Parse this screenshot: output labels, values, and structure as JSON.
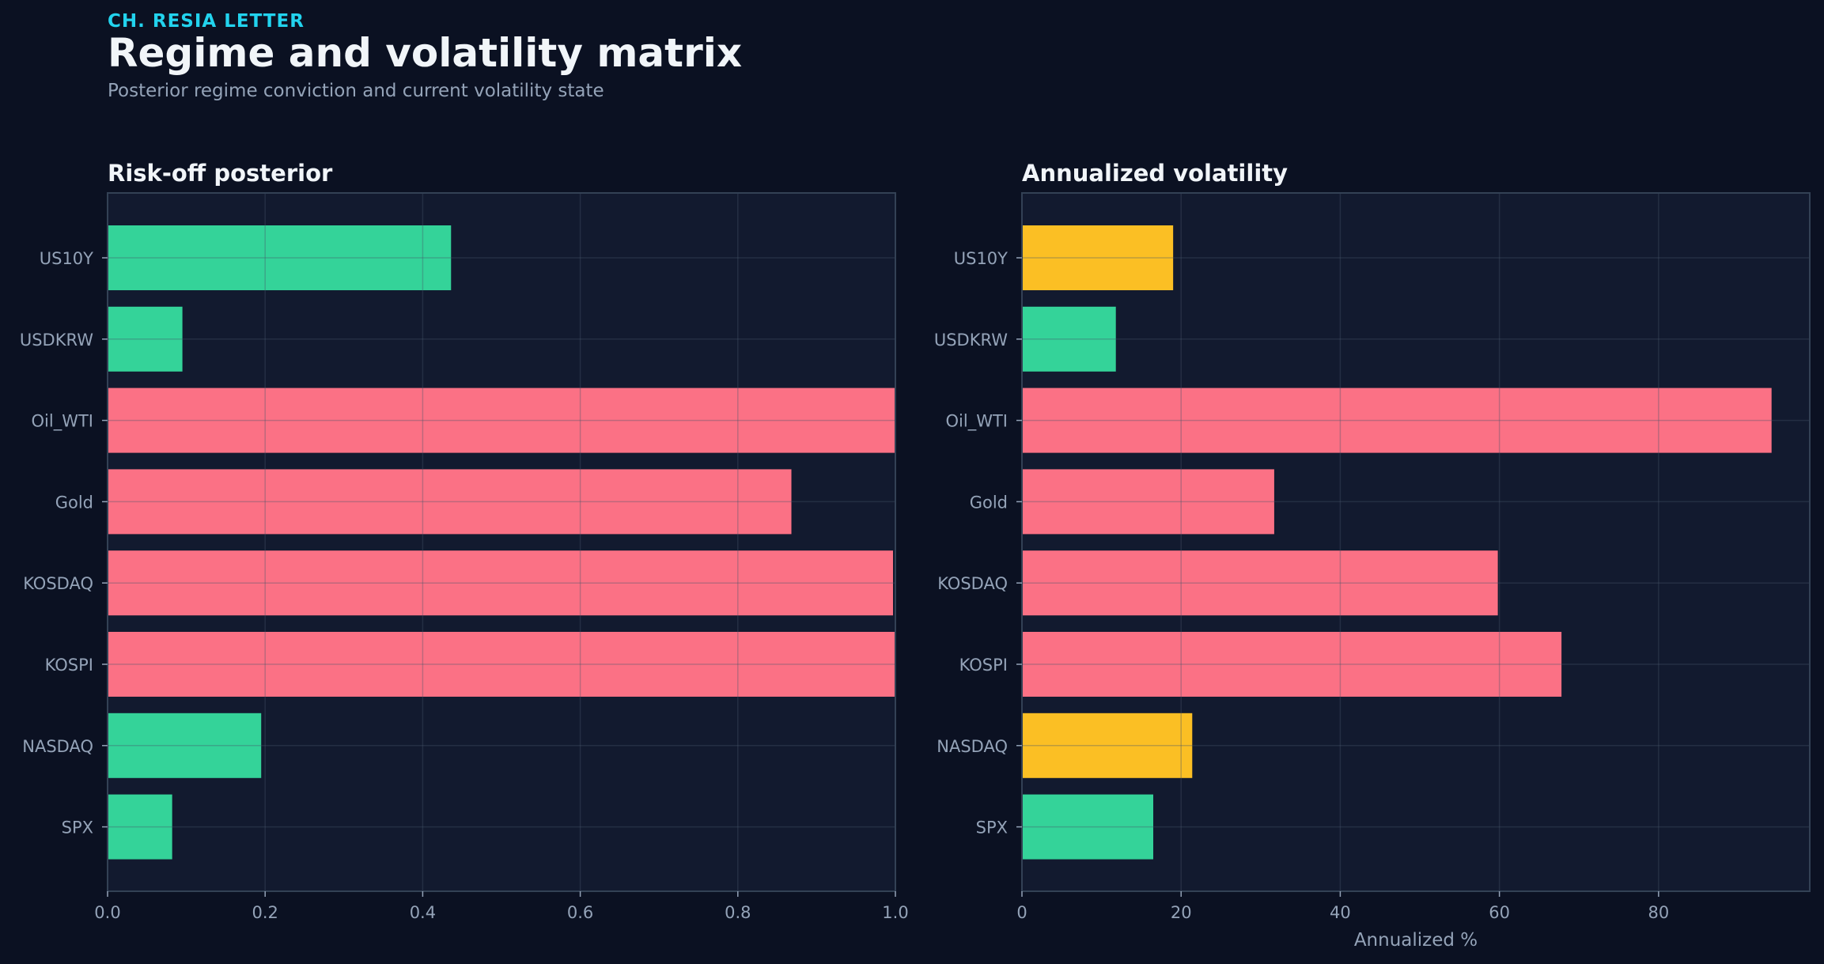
{
  "header": {
    "kicker": "CH. RESIA LETTER",
    "title": "Regime and volatility matrix",
    "subtitle": "Posterior regime conviction and current volatility state"
  },
  "colors": {
    "background": "#0b1122",
    "panel": "#121a2f",
    "green": "#34d399",
    "red": "#fb7185",
    "amber": "#fbbf24",
    "tick_text": "#94a3b8",
    "title_text": "#f1f5f9"
  },
  "chart_data": [
    {
      "type": "bar",
      "orientation": "horizontal",
      "title": "Risk-off posterior",
      "xlabel": "",
      "categories": [
        "US10Y",
        "USDKRW",
        "Oil_WTI",
        "Gold",
        "KOSDAQ",
        "KOSPI",
        "NASDAQ",
        "SPX"
      ],
      "values": [
        0.436,
        0.095,
        1.0,
        0.868,
        0.997,
        1.0,
        0.195,
        0.082
      ],
      "bar_colors": [
        "green",
        "green",
        "red",
        "red",
        "red",
        "red",
        "green",
        "green"
      ],
      "xlim": [
        0,
        1.0
      ],
      "xticks": [
        0.0,
        0.2,
        0.4,
        0.6,
        0.8,
        1.0
      ],
      "xtick_labels": [
        "0.0",
        "0.2",
        "0.4",
        "0.6",
        "0.8",
        "1.0"
      ],
      "grid": true
    },
    {
      "type": "bar",
      "orientation": "horizontal",
      "title": "Annualized volatility",
      "xlabel": "Annualized %",
      "categories": [
        "US10Y",
        "USDKRW",
        "Oil_WTI",
        "Gold",
        "KOSDAQ",
        "KOSPI",
        "NASDAQ",
        "SPX"
      ],
      "values": [
        19.0,
        11.8,
        94.2,
        31.7,
        59.8,
        67.8,
        21.4,
        16.5
      ],
      "bar_colors": [
        "amber",
        "green",
        "red",
        "red",
        "red",
        "red",
        "amber",
        "green"
      ],
      "xlim": [
        0,
        99
      ],
      "xticks": [
        0,
        20,
        40,
        60,
        80
      ],
      "xtick_labels": [
        "0",
        "20",
        "40",
        "60",
        "80"
      ],
      "grid": true
    }
  ]
}
